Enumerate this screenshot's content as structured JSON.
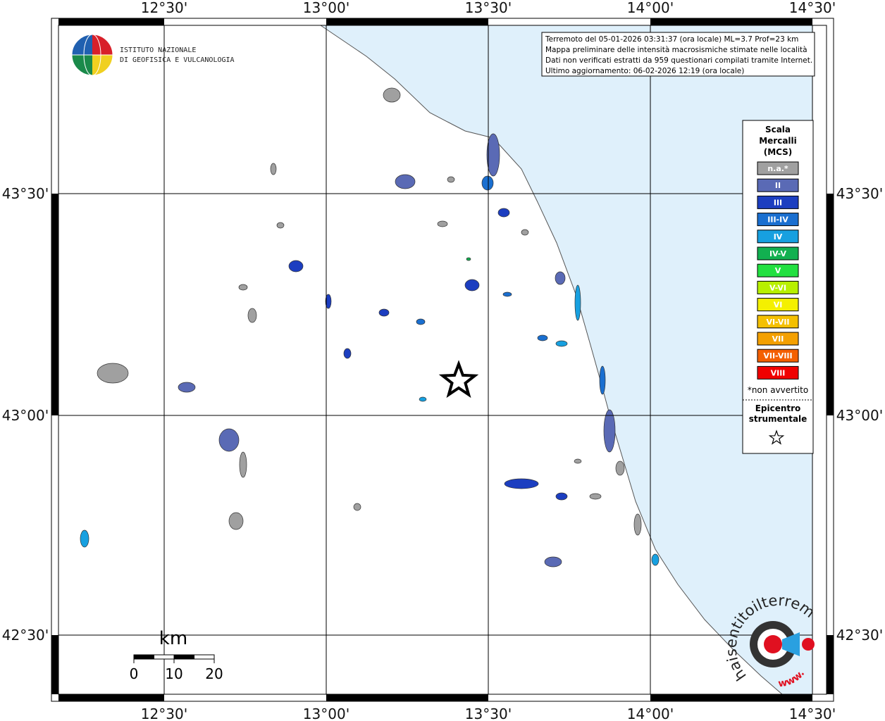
{
  "map": {
    "lon_labels": [
      "12°30'",
      "13°00'",
      "13°30'",
      "14°00'",
      "14°30'"
    ],
    "lat_labels": [
      "43°30'",
      "43°00'",
      "42°30'"
    ]
  },
  "info": {
    "lines": [
      "Terremoto del 05-01-2026 03:31:37 (ora locale) ML=3.7 Prof=23 km",
      "Mappa preliminare delle intensità macrosismiche stimate nelle località",
      "Dati non verificati estratti da 959 questionari compilati tramite Internet.",
      "Ultimo aggiornamento: 06-02-2026 12:19 (ora locale)"
    ]
  },
  "legend": {
    "title": [
      "Scala",
      "Mercalli",
      "(MCS)"
    ],
    "classes": [
      {
        "label": "n.a.*",
        "color": "#a0a0a0"
      },
      {
        "label": "II",
        "color": "#5a6ab5"
      },
      {
        "label": "III",
        "color": "#1c3ec0"
      },
      {
        "label": "III-IV",
        "color": "#1a6fd0"
      },
      {
        "label": "IV",
        "color": "#17a0e0"
      },
      {
        "label": "IV-V",
        "color": "#12b050"
      },
      {
        "label": "V",
        "color": "#22e040"
      },
      {
        "label": "V-VI",
        "color": "#b8f000"
      },
      {
        "label": "VI",
        "color": "#f4f000"
      },
      {
        "label": "VI-VII",
        "color": "#f4c000"
      },
      {
        "label": "VII",
        "color": "#f4a000"
      },
      {
        "label": "VII-VIII",
        "color": "#f46000"
      },
      {
        "label": "VIII",
        "color": "#f00000"
      }
    ],
    "note": "*non avvertito",
    "epicenter": [
      "Epicentro",
      "strumentale"
    ]
  },
  "logo": {
    "lines": [
      "ISTITUTO NAZIONALE",
      "DI GEOFISICA E VULCANOLOGIA"
    ]
  },
  "scale": {
    "unit": "km",
    "ticks": [
      0,
      10,
      20
    ]
  },
  "watermark": {
    "text": "haisentitoilterremoto.it",
    "www": "www."
  }
}
